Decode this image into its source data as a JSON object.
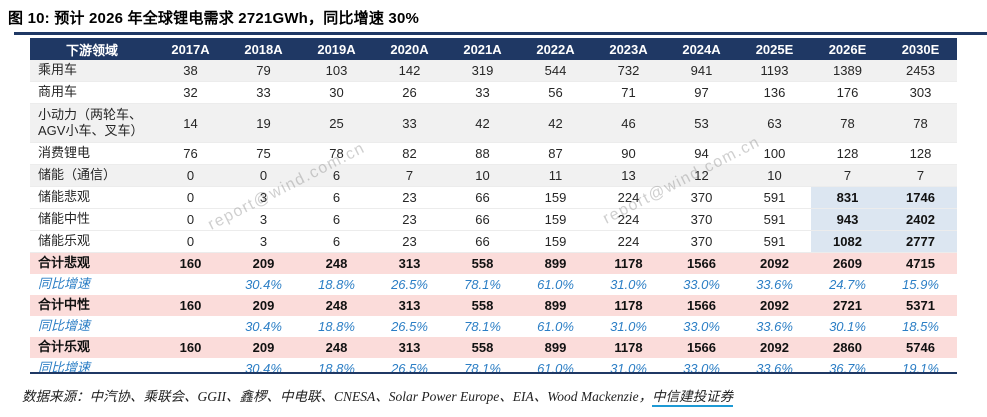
{
  "figure_title": "图 10: 预计 2026 年全球锂电需求 2721GWh，同比增速 30%",
  "watermark_text": "report@wind.com.cn",
  "footer": {
    "source_text": "数据来源：中汽协、乘联会、GGII、鑫椤、中电联、CNESA、Solar Power Europe、EIA、Wood Mackenzie，",
    "source_link": "中信建投证券"
  },
  "colors": {
    "header_bg": "#1f3864",
    "rule_line": "#1f3864",
    "total_row_pink": "#fbdcda",
    "forecast_highlight_blue": "#dce6f1",
    "stripe_gray": "#f1f1f1",
    "growth_text_blue": "#2b7ec5",
    "link_underline": "#1e9ad5"
  },
  "chart_data": {
    "type": "table",
    "title": "预计 2026 年全球锂电需求 2721GWh，同比增速 30%",
    "unit_note": "GWh",
    "columns": [
      "下游领域",
      "2017A",
      "2018A",
      "2019A",
      "2020A",
      "2021A",
      "2022A",
      "2023A",
      "2024A",
      "2025E",
      "2026E",
      "2030E"
    ],
    "rows": [
      {
        "label": "乘用车",
        "style": "cat stripe",
        "values": [
          "38",
          "79",
          "103",
          "142",
          "319",
          "544",
          "732",
          "941",
          "1193",
          "1389",
          "2453"
        ]
      },
      {
        "label": "商用车",
        "style": "cat",
        "values": [
          "32",
          "33",
          "30",
          "26",
          "33",
          "56",
          "71",
          "97",
          "136",
          "176",
          "303"
        ]
      },
      {
        "label": "小动力（两轮车、AGV小车、叉车）",
        "style": "cat stripe tall",
        "values": [
          "14",
          "19",
          "25",
          "33",
          "42",
          "42",
          "46",
          "53",
          "63",
          "78",
          "78"
        ]
      },
      {
        "label": "消费锂电",
        "style": "cat",
        "values": [
          "76",
          "75",
          "78",
          "82",
          "88",
          "87",
          "90",
          "94",
          "100",
          "128",
          "128"
        ]
      },
      {
        "label": "储能（通信）",
        "style": "cat stripe",
        "values": [
          "0",
          "0",
          "6",
          "7",
          "10",
          "11",
          "13",
          "12",
          "10",
          "7",
          "7"
        ]
      },
      {
        "label": "储能悲观",
        "style": "cat scenario",
        "values": [
          "0",
          "3",
          "6",
          "23",
          "66",
          "159",
          "224",
          "370",
          "591",
          "831",
          "1746"
        ]
      },
      {
        "label": "储能中性",
        "style": "cat scenario",
        "values": [
          "0",
          "3",
          "6",
          "23",
          "66",
          "159",
          "224",
          "370",
          "591",
          "943",
          "2402"
        ]
      },
      {
        "label": "储能乐观",
        "style": "cat scenario",
        "values": [
          "0",
          "3",
          "6",
          "23",
          "66",
          "159",
          "224",
          "370",
          "591",
          "1082",
          "2777"
        ]
      },
      {
        "label": "合计悲观",
        "style": "total",
        "values": [
          "160",
          "209",
          "248",
          "313",
          "558",
          "899",
          "1178",
          "1566",
          "2092",
          "2609",
          "4715"
        ]
      },
      {
        "label": "同比增速",
        "style": "growth",
        "values": [
          "",
          "30.4%",
          "18.8%",
          "26.5%",
          "78.1%",
          "61.0%",
          "31.0%",
          "33.0%",
          "33.6%",
          "24.7%",
          "15.9%"
        ]
      },
      {
        "label": "合计中性",
        "style": "total",
        "values": [
          "160",
          "209",
          "248",
          "313",
          "558",
          "899",
          "1178",
          "1566",
          "2092",
          "2721",
          "5371"
        ]
      },
      {
        "label": "同比增速",
        "style": "growth",
        "values": [
          "",
          "30.4%",
          "18.8%",
          "26.5%",
          "78.1%",
          "61.0%",
          "31.0%",
          "33.0%",
          "33.6%",
          "30.1%",
          "18.5%"
        ]
      },
      {
        "label": "合计乐观",
        "style": "total",
        "values": [
          "160",
          "209",
          "248",
          "313",
          "558",
          "899",
          "1178",
          "1566",
          "2092",
          "2860",
          "5746"
        ]
      },
      {
        "label": "同比增速",
        "style": "growth",
        "values": [
          "",
          "30.4%",
          "18.8%",
          "26.5%",
          "78.1%",
          "61.0%",
          "31.0%",
          "33.0%",
          "33.6%",
          "36.7%",
          "19.1%"
        ]
      }
    ]
  }
}
